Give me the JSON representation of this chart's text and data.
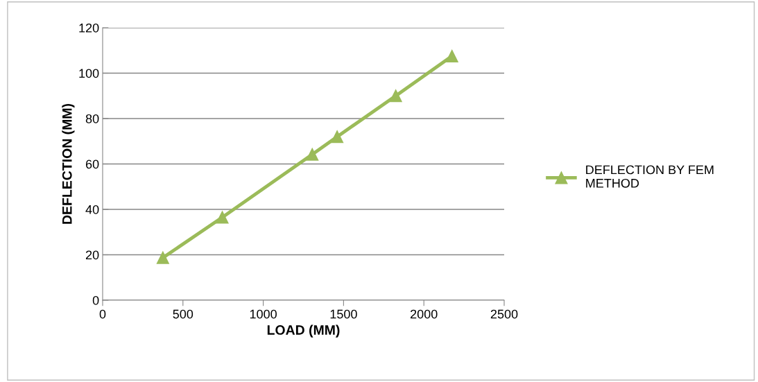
{
  "chart_data": {
    "type": "line",
    "xlabel": "LOAD (MM)",
    "ylabel": "DEFLECTION (MM)",
    "x": [
      375,
      745,
      1305,
      1460,
      1825,
      2175
    ],
    "series": [
      {
        "name": "DEFLECTION BY FEM METHOD",
        "color": "#9bbb59",
        "values": [
          18.7,
          36.5,
          64.2,
          72,
          90,
          107.5
        ]
      }
    ],
    "xlim": [
      0,
      2500
    ],
    "xticks": [
      0,
      500,
      1000,
      1500,
      2000,
      2500
    ],
    "ylim": [
      0,
      120
    ],
    "yticks": [
      0,
      20,
      40,
      60,
      80,
      100,
      120
    ],
    "grid": "y",
    "legend": "right",
    "marker": "triangle",
    "line_style": "solid"
  }
}
